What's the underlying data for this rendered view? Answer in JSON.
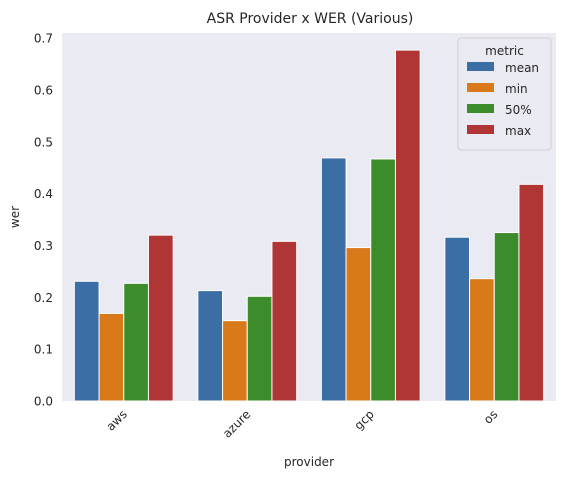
{
  "chart_data": {
    "type": "bar",
    "title": "ASR Provider x WER (Various)",
    "xlabel": "provider",
    "ylabel": "wer",
    "categories": [
      "aws",
      "azure",
      "gcp",
      "os"
    ],
    "series": [
      {
        "name": "mean",
        "color": "#3a6ea5",
        "values": [
          0.231,
          0.213,
          0.469,
          0.316
        ]
      },
      {
        "name": "min",
        "color": "#d97a1a",
        "values": [
          0.169,
          0.155,
          0.296,
          0.236
        ]
      },
      {
        "name": "50%",
        "color": "#3d8c2b",
        "values": [
          0.227,
          0.202,
          0.467,
          0.325
        ]
      },
      {
        "name": "max",
        "color": "#b03636",
        "values": [
          0.32,
          0.308,
          0.677,
          0.418
        ]
      }
    ],
    "ylim": [
      0,
      0.71
    ],
    "yticks": [
      "0.0",
      "0.1",
      "0.2",
      "0.3",
      "0.4",
      "0.5",
      "0.6",
      "0.7"
    ],
    "grid": false,
    "legend": {
      "title": "metric",
      "position": "top-right"
    },
    "background": "#eaeaf2"
  }
}
